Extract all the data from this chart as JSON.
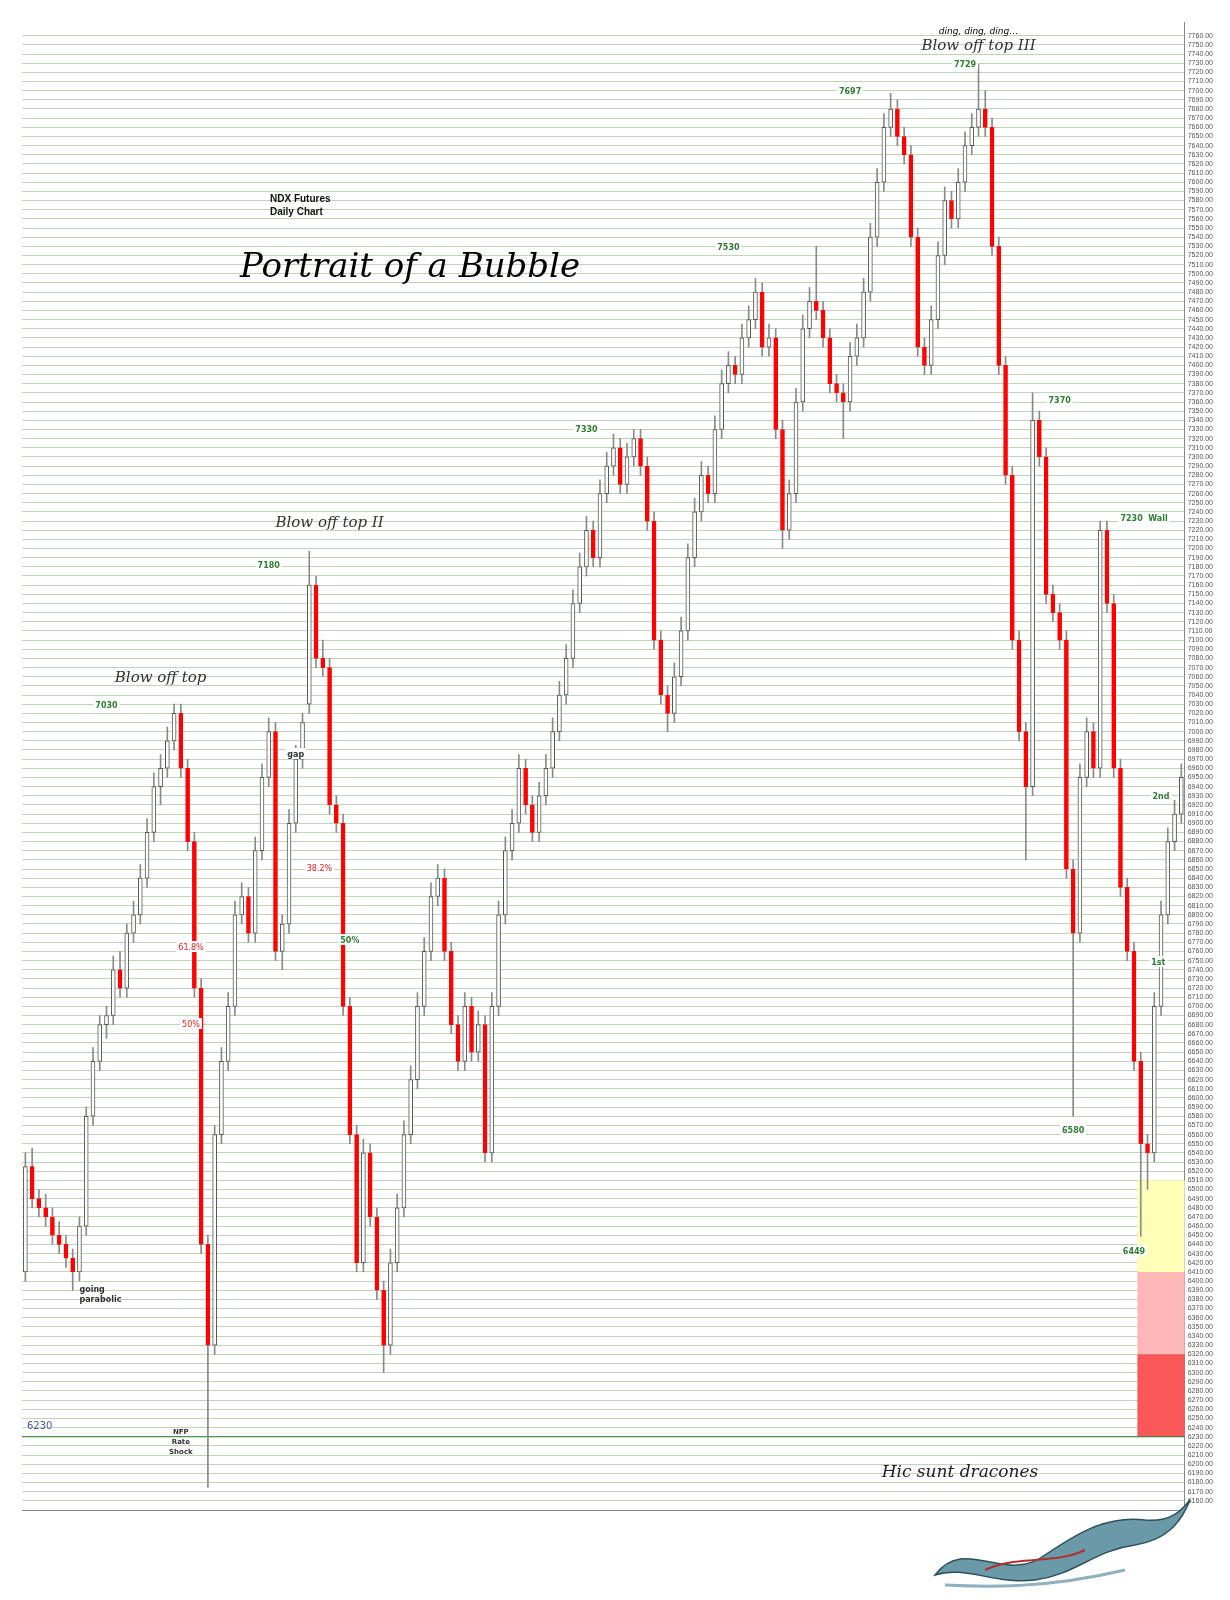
{
  "chart_data": {
    "type": "candlestick",
    "title": "Portrait of a Bubble",
    "subtitle": "NDX  Futures Daily Chart",
    "categories": [
      null,
      null,
      null,
      null,
      null,
      null,
      null,
      null,
      null,
      null,
      null,
      null,
      null,
      null,
      null,
      null,
      null,
      null,
      null,
      null,
      null,
      null,
      null,
      null,
      null,
      null,
      null,
      null,
      null,
      null,
      null,
      null,
      null,
      null,
      null,
      null,
      null,
      null,
      null,
      null,
      null,
      null,
      null,
      null,
      null,
      null,
      null,
      null,
      null,
      null,
      null,
      null,
      null,
      null,
      null,
      null,
      null,
      null,
      null,
      null,
      null,
      null,
      null,
      null,
      null,
      null,
      null,
      null,
      null,
      null,
      null,
      null,
      null,
      null,
      null,
      null,
      null,
      null,
      null,
      null,
      null,
      null,
      null,
      null,
      null,
      null,
      null,
      null,
      null,
      null,
      null,
      null,
      null,
      null,
      null,
      null,
      null,
      null,
      null,
      null,
      null,
      null,
      null,
      null,
      null,
      null,
      null,
      null,
      null,
      null,
      null,
      null,
      null,
      null,
      null,
      null,
      null,
      null,
      null,
      null,
      null,
      null,
      null,
      null,
      null,
      null,
      null,
      null,
      null,
      null,
      null,
      null,
      null,
      null,
      null,
      null,
      null,
      null,
      null,
      null,
      null,
      null,
      null,
      null,
      null,
      null,
      null,
      null,
      null,
      null,
      null,
      null,
      null,
      null,
      null,
      null,
      null,
      null,
      null,
      null,
      null,
      null,
      null,
      null,
      null,
      null,
      null,
      null,
      null,
      null,
      null,
      null
    ],
    "ohlc": [
      [
        6410,
        6540,
        6400,
        6525
      ],
      [
        6525,
        6545,
        6480,
        6490
      ],
      [
        6490,
        6500,
        6470,
        6480
      ],
      [
        6480,
        6495,
        6460,
        6470
      ],
      [
        6470,
        6480,
        6440,
        6450
      ],
      [
        6450,
        6465,
        6430,
        6440
      ],
      [
        6440,
        6450,
        6415,
        6425
      ],
      [
        6425,
        6435,
        6390,
        6410
      ],
      [
        6410,
        6470,
        6400,
        6460
      ],
      [
        6460,
        6590,
        6450,
        6580
      ],
      [
        6580,
        6655,
        6570,
        6640
      ],
      [
        6640,
        6690,
        6630,
        6680
      ],
      [
        6680,
        6700,
        6665,
        6690
      ],
      [
        6690,
        6755,
        6680,
        6740
      ],
      [
        6740,
        6760,
        6710,
        6720
      ],
      [
        6720,
        6790,
        6710,
        6780
      ],
      [
        6780,
        6815,
        6770,
        6800
      ],
      [
        6800,
        6855,
        6790,
        6840
      ],
      [
        6840,
        6905,
        6830,
        6890
      ],
      [
        6890,
        6955,
        6880,
        6940
      ],
      [
        6940,
        6975,
        6920,
        6960
      ],
      [
        6960,
        7005,
        6950,
        6990
      ],
      [
        6990,
        7030,
        6980,
        7020
      ],
      [
        7020,
        7030,
        6950,
        6960
      ],
      [
        6960,
        6970,
        6870,
        6880
      ],
      [
        6880,
        6890,
        6710,
        6720
      ],
      [
        6720,
        6730,
        6430,
        6440
      ],
      [
        6440,
        6450,
        6175,
        6330
      ],
      [
        6330,
        6570,
        6320,
        6560
      ],
      [
        6560,
        6655,
        6550,
        6640
      ],
      [
        6640,
        6715,
        6630,
        6700
      ],
      [
        6700,
        6815,
        6690,
        6800
      ],
      [
        6800,
        6835,
        6790,
        6820
      ],
      [
        6820,
        6830,
        6770,
        6780
      ],
      [
        6780,
        6885,
        6770,
        6870
      ],
      [
        6870,
        6965,
        6860,
        6950
      ],
      [
        6950,
        7015,
        6940,
        7000
      ],
      [
        7000,
        7010,
        6750,
        6760
      ],
      [
        6760,
        6800,
        6740,
        6790
      ],
      [
        6790,
        6915,
        6780,
        6900
      ],
      [
        6900,
        6985,
        6890,
        6970
      ],
      [
        6970,
        7020,
        6960,
        7010
      ],
      [
        7030,
        7197,
        7020,
        7160
      ],
      [
        7160,
        7170,
        7070,
        7080
      ],
      [
        7080,
        7100,
        7060,
        7070
      ],
      [
        7070,
        7080,
        6910,
        6920
      ],
      [
        6920,
        6930,
        6890,
        6900
      ],
      [
        6900,
        6910,
        6690,
        6700
      ],
      [
        6700,
        6710,
        6550,
        6560
      ],
      [
        6560,
        6570,
        6410,
        6420
      ],
      [
        6420,
        6555,
        6410,
        6540
      ],
      [
        6540,
        6550,
        6460,
        6470
      ],
      [
        6470,
        6480,
        6380,
        6390
      ],
      [
        6390,
        6400,
        6300,
        6330
      ],
      [
        6330,
        6435,
        6320,
        6420
      ],
      [
        6420,
        6495,
        6410,
        6480
      ],
      [
        6480,
        6575,
        6470,
        6560
      ],
      [
        6560,
        6635,
        6550,
        6620
      ],
      [
        6620,
        6715,
        6610,
        6700
      ],
      [
        6700,
        6775,
        6690,
        6760
      ],
      [
        6760,
        6835,
        6750,
        6820
      ],
      [
        6820,
        6855,
        6810,
        6840
      ],
      [
        6840,
        6850,
        6750,
        6760
      ],
      [
        6760,
        6770,
        6670,
        6680
      ],
      [
        6680,
        6690,
        6630,
        6640
      ],
      [
        6640,
        6715,
        6630,
        6700
      ],
      [
        6700,
        6710,
        6640,
        6650
      ],
      [
        6650,
        6695,
        6640,
        6680
      ],
      [
        6680,
        6690,
        6530,
        6540
      ],
      [
        6540,
        6715,
        6530,
        6700
      ],
      [
        6700,
        6815,
        6690,
        6800
      ],
      [
        6800,
        6885,
        6790,
        6870
      ],
      [
        6870,
        6915,
        6860,
        6900
      ],
      [
        6900,
        6975,
        6890,
        6960
      ],
      [
        6960,
        6970,
        6910,
        6920
      ],
      [
        6920,
        6930,
        6880,
        6890
      ],
      [
        6890,
        6945,
        6880,
        6930
      ],
      [
        6930,
        6975,
        6920,
        6960
      ],
      [
        6960,
        7015,
        6950,
        7000
      ],
      [
        7000,
        7055,
        6990,
        7040
      ],
      [
        7040,
        7095,
        7030,
        7080
      ],
      [
        7080,
        7155,
        7070,
        7140
      ],
      [
        7140,
        7195,
        7130,
        7180
      ],
      [
        7180,
        7235,
        7170,
        7220
      ],
      [
        7220,
        7230,
        7180,
        7190
      ],
      [
        7190,
        7275,
        7180,
        7260
      ],
      [
        7260,
        7305,
        7250,
        7290
      ],
      [
        7290,
        7325,
        7280,
        7310
      ],
      [
        7310,
        7320,
        7260,
        7270
      ],
      [
        7270,
        7315,
        7260,
        7300
      ],
      [
        7300,
        7330,
        7290,
        7320
      ],
      [
        7320,
        7330,
        7280,
        7290
      ],
      [
        7290,
        7300,
        7220,
        7230
      ],
      [
        7230,
        7240,
        7090,
        7100
      ],
      [
        7100,
        7110,
        7030,
        7040
      ],
      [
        7040,
        7050,
        7000,
        7020
      ],
      [
        7020,
        7075,
        7010,
        7060
      ],
      [
        7060,
        7125,
        7050,
        7110
      ],
      [
        7110,
        7205,
        7100,
        7190
      ],
      [
        7190,
        7255,
        7180,
        7240
      ],
      [
        7240,
        7295,
        7230,
        7280
      ],
      [
        7280,
        7290,
        7250,
        7260
      ],
      [
        7260,
        7345,
        7250,
        7330
      ],
      [
        7330,
        7395,
        7320,
        7380
      ],
      [
        7380,
        7415,
        7370,
        7400
      ],
      [
        7400,
        7410,
        7380,
        7390
      ],
      [
        7390,
        7445,
        7380,
        7430
      ],
      [
        7430,
        7465,
        7420,
        7450
      ],
      [
        7450,
        7495,
        7440,
        7480
      ],
      [
        7480,
        7490,
        7410,
        7420
      ],
      [
        7420,
        7445,
        7410,
        7430
      ],
      [
        7430,
        7440,
        7320,
        7330
      ],
      [
        7330,
        7340,
        7200,
        7220
      ],
      [
        7220,
        7275,
        7210,
        7260
      ],
      [
        7260,
        7375,
        7250,
        7360
      ],
      [
        7360,
        7455,
        7350,
        7440
      ],
      [
        7440,
        7485,
        7430,
        7470
      ],
      [
        7470,
        7530,
        7450,
        7460
      ],
      [
        7460,
        7470,
        7420,
        7430
      ],
      [
        7430,
        7440,
        7370,
        7380
      ],
      [
        7380,
        7390,
        7360,
        7370
      ],
      [
        7370,
        7380,
        7320,
        7360
      ],
      [
        7360,
        7425,
        7350,
        7410
      ],
      [
        7410,
        7445,
        7400,
        7430
      ],
      [
        7430,
        7495,
        7420,
        7480
      ],
      [
        7480,
        7555,
        7470,
        7540
      ],
      [
        7540,
        7615,
        7530,
        7600
      ],
      [
        7600,
        7675,
        7590,
        7660
      ],
      [
        7660,
        7697,
        7650,
        7680
      ],
      [
        7680,
        7690,
        7640,
        7650
      ],
      [
        7650,
        7660,
        7620,
        7630
      ],
      [
        7630,
        7640,
        7530,
        7540
      ],
      [
        7540,
        7550,
        7410,
        7420
      ],
      [
        7420,
        7430,
        7390,
        7400
      ],
      [
        7400,
        7465,
        7390,
        7450
      ],
      [
        7450,
        7535,
        7440,
        7520
      ],
      [
        7520,
        7595,
        7510,
        7580
      ],
      [
        7580,
        7590,
        7550,
        7560
      ],
      [
        7560,
        7615,
        7550,
        7600
      ],
      [
        7600,
        7655,
        7590,
        7640
      ],
      [
        7640,
        7675,
        7630,
        7660
      ],
      [
        7660,
        7729,
        7650,
        7680
      ],
      [
        7680,
        7700,
        7650,
        7660
      ],
      [
        7660,
        7670,
        7520,
        7530
      ],
      [
        7530,
        7540,
        7390,
        7400
      ],
      [
        7400,
        7410,
        7270,
        7280
      ],
      [
        7280,
        7290,
        7090,
        7100
      ],
      [
        7100,
        7110,
        6990,
        7000
      ],
      [
        7000,
        7010,
        6860,
        6940
      ],
      [
        6940,
        7370,
        6930,
        7340
      ],
      [
        7340,
        7350,
        7290,
        7300
      ],
      [
        7300,
        7310,
        7140,
        7150
      ],
      [
        7150,
        7160,
        7120,
        7130
      ],
      [
        7130,
        7140,
        7090,
        7100
      ],
      [
        7100,
        7110,
        6840,
        6850
      ],
      [
        6850,
        6860,
        6580,
        6780
      ],
      [
        6780,
        6965,
        6770,
        6950
      ],
      [
        6950,
        7015,
        6940,
        7000
      ],
      [
        7000,
        7010,
        6950,
        6960
      ],
      [
        6960,
        7230,
        6950,
        7220
      ],
      [
        7220,
        7230,
        7130,
        7140
      ],
      [
        7140,
        7150,
        6950,
        6960
      ],
      [
        6960,
        6970,
        6820,
        6830
      ],
      [
        6830,
        6840,
        6750,
        6760
      ],
      [
        6760,
        6770,
        6630,
        6640
      ],
      [
        6640,
        6650,
        6449,
        6550
      ],
      [
        6550,
        6560,
        6500,
        6540
      ],
      [
        6540,
        6715,
        6530,
        6700
      ],
      [
        6700,
        6815,
        6690,
        6800
      ],
      [
        6800,
        6895,
        6790,
        6880
      ],
      [
        6880,
        6925,
        6870,
        6910
      ],
      [
        6910,
        6965,
        6900,
        6950
      ]
    ],
    "ylim": [
      6150,
      7775
    ],
    "yticks": [
      {
        "value": 7760,
        "label": "7760.00"
      },
      {
        "value": 7750,
        "label": "7750.00"
      },
      {
        "value": 7740,
        "label": "7740.00"
      },
      {
        "value": 7730,
        "label": "7730.00"
      },
      {
        "value": 7720,
        "label": "7720.00"
      },
      {
        "value": 7710,
        "label": "7710.00"
      },
      {
        "value": 7700,
        "label": "7700.00"
      },
      {
        "value": 7690,
        "label": "7690.00"
      },
      {
        "value": 7680,
        "label": "7680.00"
      },
      {
        "value": 7670,
        "label": "7670.00"
      },
      {
        "value": 7660,
        "label": "7660.00"
      },
      {
        "value": 7650,
        "label": "7650.00"
      },
      {
        "value": 7640,
        "label": "7640.00"
      },
      {
        "value": 7630,
        "label": "7630.00"
      },
      {
        "value": 7620,
        "label": "7620.00"
      },
      {
        "value": 7610,
        "label": "7610.00"
      },
      {
        "value": 7600,
        "label": "7600.00"
      },
      {
        "value": 7590,
        "label": "7590.00"
      },
      {
        "value": 7580,
        "label": "7580.00"
      },
      {
        "value": 7570,
        "label": "7570.00"
      },
      {
        "value": 7560,
        "label": "7560.00"
      },
      {
        "value": 7550,
        "label": "7550.00"
      },
      {
        "value": 7540,
        "label": "7540.00"
      },
      {
        "value": 7530,
        "label": "7530.00"
      },
      {
        "value": 7520,
        "label": "7520.00"
      },
      {
        "value": 7510,
        "label": "7510.00"
      },
      {
        "value": 7500,
        "label": "7500.00"
      },
      {
        "value": 7490,
        "label": "7490.00"
      },
      {
        "value": 7480,
        "label": "7480.00"
      },
      {
        "value": 7470,
        "label": "7470.00"
      },
      {
        "value": 7460,
        "label": "7460.00"
      },
      {
        "value": 7450,
        "label": "7450.00"
      },
      {
        "value": 7440,
        "label": "7440.00"
      },
      {
        "value": 7430,
        "label": "7430.00"
      },
      {
        "value": 7420,
        "label": "7420.00"
      },
      {
        "value": 7410,
        "label": "7410.00"
      },
      {
        "value": 7400,
        "label": "7400.00"
      },
      {
        "value": 7390,
        "label": "7390.00"
      },
      {
        "value": 7380,
        "label": "7380.00"
      },
      {
        "value": 7370,
        "label": "7370.00"
      },
      {
        "value": 7360,
        "label": "7360.00"
      },
      {
        "value": 7350,
        "label": "7350.00"
      },
      {
        "value": 7340,
        "label": "7340.00"
      },
      {
        "value": 7330,
        "label": "7330.00"
      },
      {
        "value": 7320,
        "label": "7320.00"
      },
      {
        "value": 7310,
        "label": "7310.00"
      },
      {
        "value": 7300,
        "label": "7300.00"
      },
      {
        "value": 7290,
        "label": "7290.00"
      },
      {
        "value": 7280,
        "label": "7280.00"
      },
      {
        "value": 7270,
        "label": "7270.00"
      },
      {
        "value": 7260,
        "label": "7260.00"
      },
      {
        "value": 7250,
        "label": "7250.00"
      },
      {
        "value": 7240,
        "label": "7240.00"
      },
      {
        "value": 7230,
        "label": "7230.00"
      },
      {
        "value": 7220,
        "label": "7220.00"
      },
      {
        "value": 7210,
        "label": "7210.00"
      },
      {
        "value": 7200,
        "label": "7200.00"
      },
      {
        "value": 7190,
        "label": "7190.00"
      },
      {
        "value": 7180,
        "label": "7180.00"
      },
      {
        "value": 7170,
        "label": "7170.00"
      },
      {
        "value": 7160,
        "label": "7160.00"
      },
      {
        "value": 7150,
        "label": "7150.00"
      },
      {
        "value": 7140,
        "label": "7140.00"
      },
      {
        "value": 7130,
        "label": "7130.00"
      },
      {
        "value": 7120,
        "label": "7120.00"
      },
      {
        "value": 7110,
        "label": "7110.00"
      },
      {
        "value": 7100,
        "label": "7100.00"
      },
      {
        "value": 7090,
        "label": "7090.00"
      },
      {
        "value": 7080,
        "label": "7080.00"
      },
      {
        "value": 7070,
        "label": "7070.00"
      },
      {
        "value": 7060,
        "label": "7060.00"
      },
      {
        "value": 7050,
        "label": "7050.00"
      },
      {
        "value": 7040,
        "label": "7040.00"
      },
      {
        "value": 7030,
        "label": "7030.00"
      },
      {
        "value": 7020,
        "label": "7020.00"
      },
      {
        "value": 7010,
        "label": "7010.00"
      },
      {
        "value": 7000,
        "label": "7000.00"
      },
      {
        "value": 6990,
        "label": "6990.00"
      },
      {
        "value": 6980,
        "label": "6980.00"
      },
      {
        "value": 6970,
        "label": "6970.00"
      },
      {
        "value": 6960,
        "label": "6960.00"
      },
      {
        "value": 6950,
        "label": "6950.00"
      },
      {
        "value": 6940,
        "label": "6940.00"
      },
      {
        "value": 6930,
        "label": "6930.00"
      },
      {
        "value": 6920,
        "label": "6920.00"
      },
      {
        "value": 6910,
        "label": "6910.00"
      },
      {
        "value": 6900,
        "label": "6900.00"
      },
      {
        "value": 6890,
        "label": "6890.00"
      },
      {
        "value": 6880,
        "label": "6880.00"
      },
      {
        "value": 6870,
        "label": "6870.00"
      },
      {
        "value": 6860,
        "label": "6860.00"
      },
      {
        "value": 6850,
        "label": "6850.00"
      },
      {
        "value": 6840,
        "label": "6840.00"
      },
      {
        "value": 6830,
        "label": "6830.00"
      },
      {
        "value": 6820,
        "label": "6820.00"
      },
      {
        "value": 6810,
        "label": "6810.00"
      },
      {
        "value": 6800,
        "label": "6800.00"
      },
      {
        "value": 6790,
        "label": "6790.00"
      },
      {
        "value": 6780,
        "label": "6780.00"
      },
      {
        "value": 6770,
        "label": "6770.00"
      },
      {
        "value": 6760,
        "label": "6760.00"
      },
      {
        "value": 6750,
        "label": "6750.00"
      },
      {
        "value": 6740,
        "label": "6740.00"
      },
      {
        "value": 6730,
        "label": "6730.00"
      },
      {
        "value": 6720,
        "label": "6720.00"
      },
      {
        "value": 6710,
        "label": "6710.00"
      },
      {
        "value": 6700,
        "label": "6700.00"
      },
      {
        "value": 6690,
        "label": "6690.00"
      },
      {
        "value": 6680,
        "label": "6680.00"
      },
      {
        "value": 6670,
        "label": "6670.00"
      },
      {
        "value": 6660,
        "label": "6660.00"
      },
      {
        "value": 6650,
        "label": "6650.00"
      },
      {
        "value": 6640,
        "label": "6640.00"
      },
      {
        "value": 6630,
        "label": "6630.00"
      },
      {
        "value": 6620,
        "label": "6620.00"
      },
      {
        "value": 6610,
        "label": "6610.00"
      },
      {
        "value": 6600,
        "label": "6600.00"
      },
      {
        "value": 6590,
        "label": "6590.00"
      },
      {
        "value": 6580,
        "label": "6580.00"
      },
      {
        "value": 6570,
        "label": "6570.00"
      },
      {
        "value": 6560,
        "label": "6560.00"
      },
      {
        "value": 6550,
        "label": "6550.00"
      },
      {
        "value": 6540,
        "label": "6540.00"
      },
      {
        "value": 6530,
        "label": "6530.00"
      },
      {
        "value": 6520,
        "label": "6520.00"
      },
      {
        "value": 6510,
        "label": "6510.00"
      },
      {
        "value": 6500,
        "label": "6500.00"
      },
      {
        "value": 6490,
        "label": "6490.00"
      },
      {
        "value": 6480,
        "label": "6480.00"
      },
      {
        "value": 6470,
        "label": "6470.00"
      },
      {
        "value": 6460,
        "label": "6460.00"
      },
      {
        "value": 6450,
        "label": "6450.00"
      },
      {
        "value": 6440,
        "label": "6440.00"
      },
      {
        "value": 6430,
        "label": "6430.00"
      },
      {
        "value": 6420,
        "label": "6420.00"
      },
      {
        "value": 6410,
        "label": "6410.00"
      },
      {
        "value": 6400,
        "label": "6400.00"
      },
      {
        "value": 6390,
        "label": "6390.00"
      },
      {
        "value": 6380,
        "label": "6380.00"
      },
      {
        "value": 6370,
        "label": "6370.00"
      },
      {
        "value": 6360,
        "label": "6360.00"
      },
      {
        "value": 6350,
        "label": "6350.00"
      },
      {
        "value": 6340,
        "label": "6340.00"
      },
      {
        "value": 6330,
        "label": "6330.00"
      },
      {
        "value": 6320,
        "label": "6320.00"
      },
      {
        "value": 6310,
        "label": "6310.00"
      },
      {
        "value": 6300,
        "label": "6300.00"
      },
      {
        "value": 6290,
        "label": "6290.00"
      },
      {
        "value": 6280,
        "label": "6280.00"
      },
      {
        "value": 6270,
        "label": "6270.00"
      },
      {
        "value": 6260,
        "label": "6260.00"
      },
      {
        "value": 6250,
        "label": "6250.00"
      },
      {
        "value": 6240,
        "label": "6240.00"
      },
      {
        "value": 6230,
        "label": "6230.00"
      },
      {
        "value": 6220,
        "label": "6220.00"
      },
      {
        "value": 6210,
        "label": "6210.00"
      },
      {
        "value": 6200,
        "label": "6200.00"
      },
      {
        "value": 6190,
        "label": "6190.00"
      },
      {
        "value": 6180,
        "label": "6180.00"
      },
      {
        "value": 6170,
        "label": "6170.00"
      },
      {
        "value": 6160,
        "label": "6160.00"
      }
    ],
    "grid": "y",
    "tick_labels": "y",
    "ref_lines": [
      {
        "axis": "y",
        "value": 6230,
        "label": "6230",
        "color": "#2e7d32"
      }
    ],
    "bands": [
      {
        "axis": "y",
        "from": 6410,
        "to": 6510,
        "color": "#ffffb8"
      },
      {
        "axis": "y",
        "from": 6320,
        "to": 6410,
        "color": "#ffb8b8"
      },
      {
        "axis": "y",
        "from": 6230,
        "to": 6320,
        "color": "#f85858"
      }
    ],
    "annotations": [
      "Blow off top",
      "Blow off top II",
      "Blow off top III",
      "ding, ding, ding…",
      "7030",
      "7180",
      "7330",
      "7530",
      "7697",
      "7729",
      "7370",
      "7230  Wall",
      "6580",
      "6449",
      "2nd",
      "1st",
      "gap",
      "38.2%",
      "61.8%",
      "50%",
      "50%",
      "going parabolic",
      "NFP Rate Shock",
      "Hic sunt dracones"
    ]
  }
}
